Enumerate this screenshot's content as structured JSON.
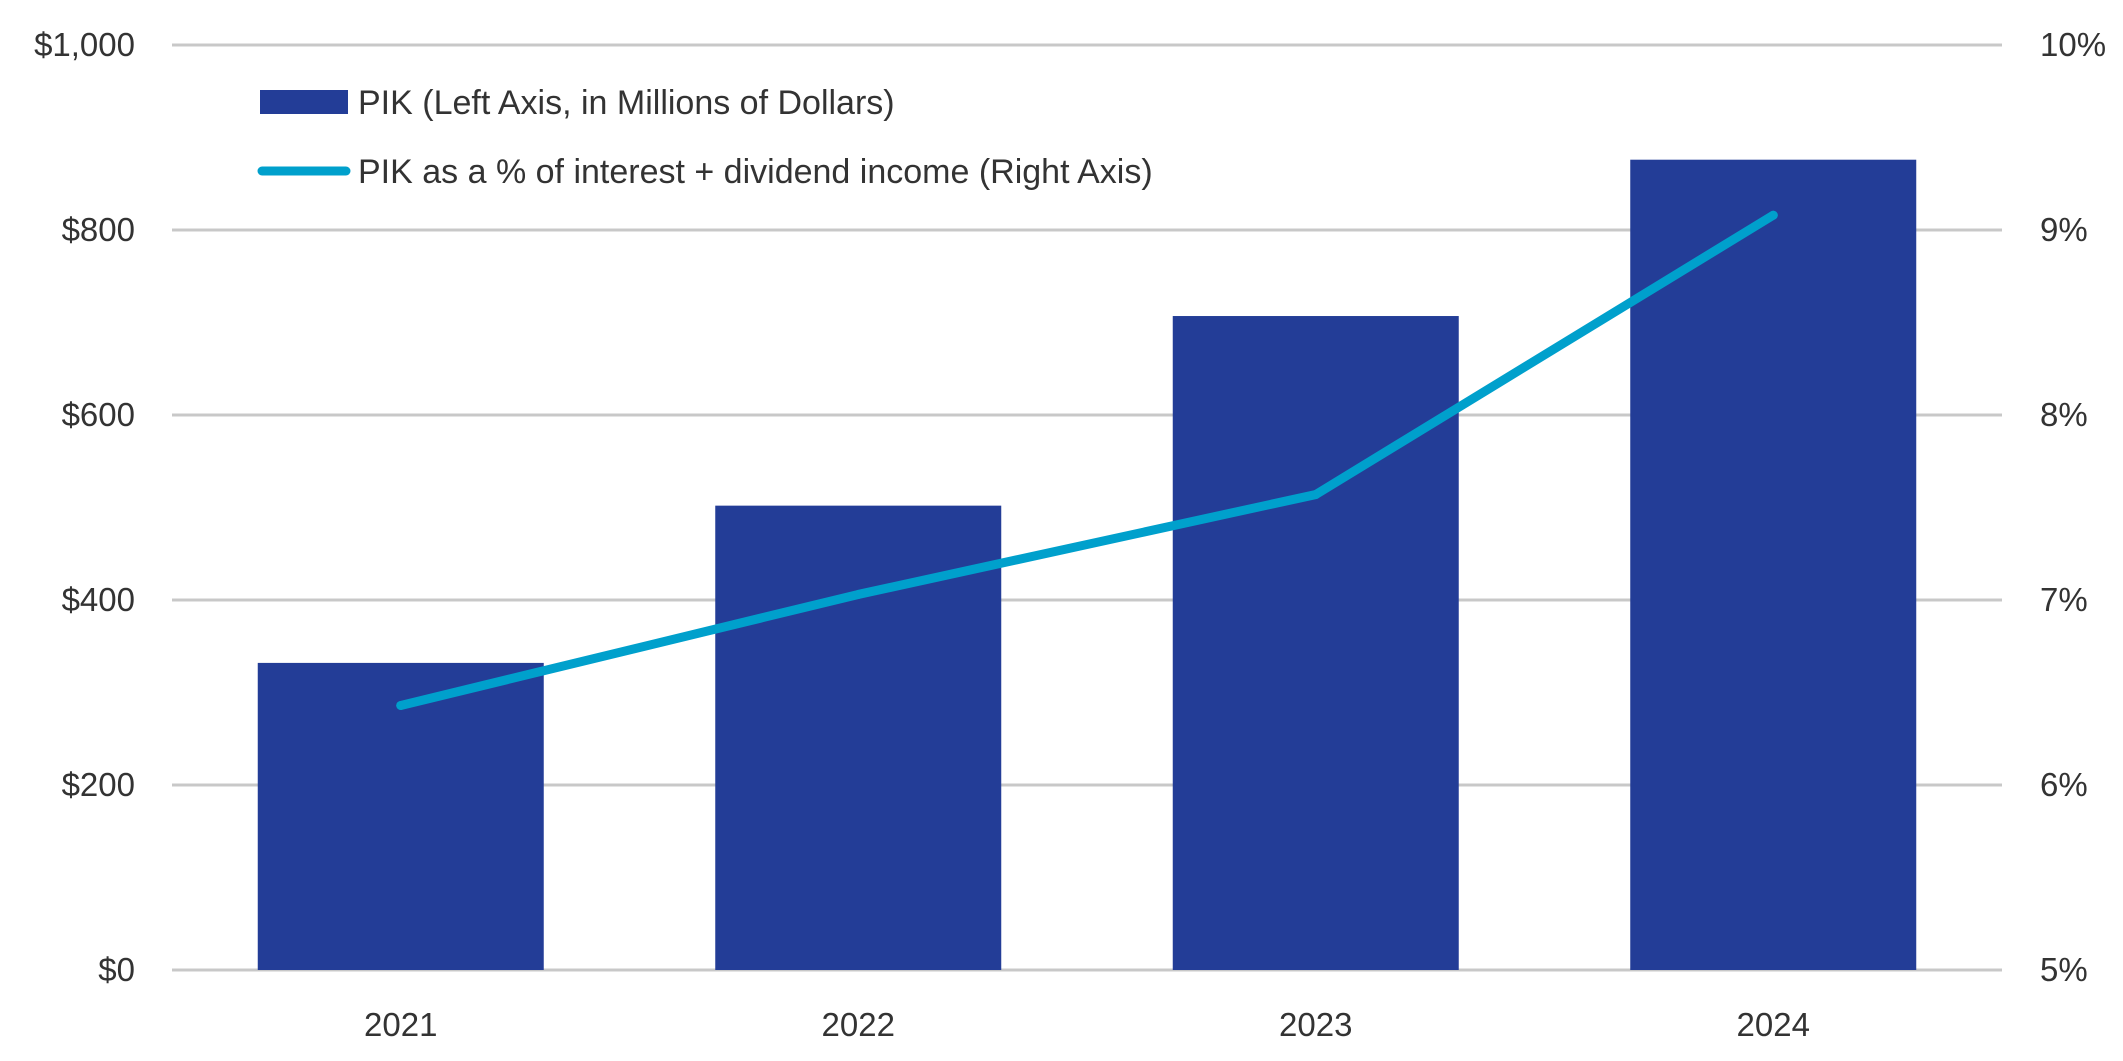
{
  "chart_data": {
    "type": "bar+line",
    "categories": [
      "2021",
      "2022",
      "2023",
      "2024"
    ],
    "series": [
      {
        "name": "PIK (Left Axis, in Millions of Dollars)",
        "type": "bar",
        "axis": "left",
        "values": [
          332,
          502,
          707,
          876
        ]
      },
      {
        "name": "PIK as a % of interest + dividend income (Right Axis)",
        "type": "line",
        "axis": "right",
        "values": [
          6.43,
          7.03,
          7.57,
          9.08
        ]
      }
    ],
    "left_axis": {
      "ylim": [
        0,
        1000
      ],
      "ticks": [
        0,
        200,
        400,
        600,
        800,
        1000
      ],
      "tick_labels": [
        "$0",
        "$200",
        "$400",
        "$600",
        "$800",
        "$1,000"
      ]
    },
    "right_axis": {
      "ylim": [
        5,
        10
      ],
      "ticks": [
        5,
        6,
        7,
        8,
        9,
        10
      ],
      "tick_labels": [
        "5%",
        "6%",
        "7%",
        "8%",
        "9%",
        "10%"
      ]
    },
    "title": "",
    "xlabel": "",
    "grid": true,
    "legend_position": "top-left",
    "colors": {
      "bar": "#233d97",
      "line": "#00a0cc",
      "grid": "#c8c8c8",
      "text": "#333333"
    }
  }
}
